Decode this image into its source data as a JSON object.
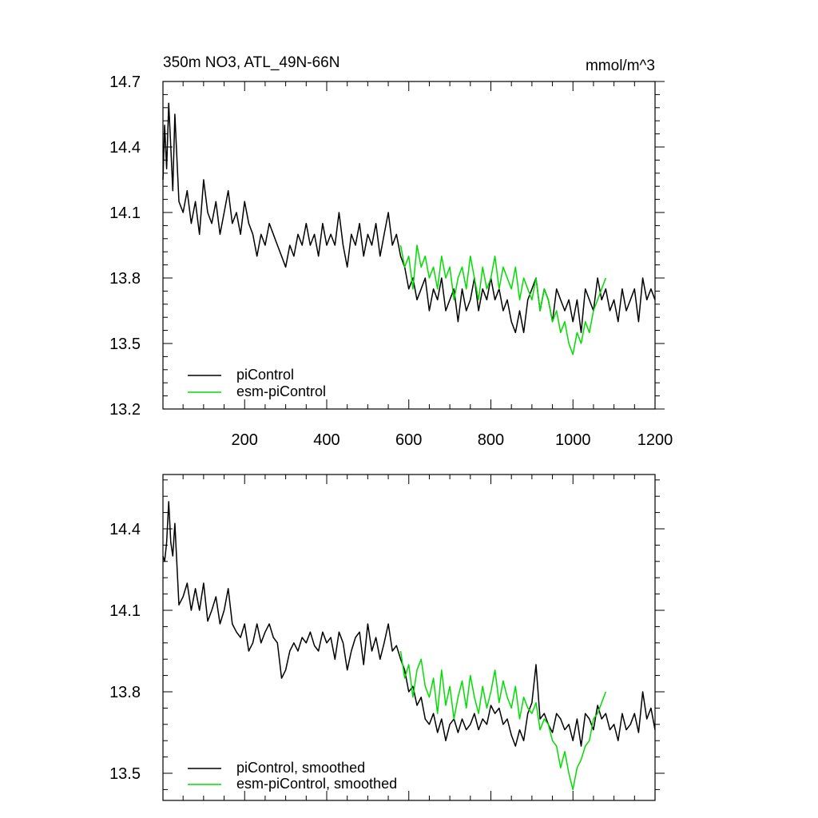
{
  "chart_data": [
    {
      "type": "line",
      "title": "350m NO3, ATL_49N-66N",
      "units": "mmol/m^3",
      "xlabel": "",
      "ylabel": "",
      "xlim": [
        1,
        1200
      ],
      "ylim": [
        13.2,
        14.7
      ],
      "xticks": [
        200,
        400,
        600,
        800,
        1000,
        1200
      ],
      "yticks": [
        13.2,
        13.5,
        13.8,
        14.1,
        14.4,
        14.7
      ],
      "ytick_labels": [
        "13.2",
        "13.5",
        "13.8",
        "14.1",
        "14.4",
        "14.7"
      ],
      "xtick_labels": [
        "200",
        "400",
        "600",
        "800",
        "1000",
        "1200"
      ],
      "grid": false,
      "legend_position": "bottom-left",
      "series": [
        {
          "name": "piControl",
          "color": "#000000",
          "x": [
            1,
            5,
            10,
            15,
            20,
            25,
            30,
            40,
            50,
            60,
            70,
            80,
            90,
            100,
            110,
            120,
            130,
            140,
            150,
            160,
            170,
            180,
            190,
            200,
            210,
            220,
            230,
            240,
            250,
            260,
            270,
            280,
            290,
            300,
            310,
            320,
            330,
            340,
            350,
            360,
            370,
            380,
            390,
            400,
            410,
            420,
            430,
            440,
            450,
            460,
            470,
            480,
            490,
            500,
            510,
            520,
            530,
            540,
            550,
            560,
            570,
            580,
            590,
            600,
            610,
            620,
            630,
            640,
            650,
            660,
            670,
            680,
            690,
            700,
            710,
            720,
            730,
            740,
            750,
            760,
            770,
            780,
            790,
            800,
            810,
            820,
            830,
            840,
            850,
            860,
            870,
            880,
            890,
            900,
            910,
            920,
            930,
            940,
            950,
            960,
            970,
            980,
            990,
            1000,
            1010,
            1020,
            1030,
            1040,
            1050,
            1060,
            1070,
            1080,
            1090,
            1100,
            1110,
            1120,
            1130,
            1140,
            1150,
            1160,
            1170,
            1180,
            1190,
            1200
          ],
          "values": [
            14.25,
            14.5,
            14.3,
            14.6,
            14.4,
            14.2,
            14.55,
            14.15,
            14.1,
            14.2,
            14.05,
            14.15,
            14.0,
            14.25,
            14.1,
            14.05,
            14.15,
            14.0,
            14.1,
            14.2,
            14.05,
            14.1,
            14.0,
            14.15,
            14.05,
            14.0,
            13.9,
            14.0,
            13.95,
            14.05,
            14.0,
            13.95,
            13.9,
            13.85,
            13.95,
            13.9,
            14.0,
            13.95,
            14.05,
            13.95,
            14.0,
            13.9,
            14.05,
            13.95,
            14.0,
            13.95,
            14.1,
            13.95,
            13.85,
            14.0,
            13.95,
            14.05,
            13.9,
            14.0,
            13.95,
            14.05,
            13.9,
            14.0,
            14.1,
            13.95,
            14.0,
            13.9,
            13.85,
            13.75,
            13.8,
            13.7,
            13.75,
            13.8,
            13.65,
            13.75,
            13.7,
            13.8,
            13.65,
            13.7,
            13.75,
            13.6,
            13.75,
            13.65,
            13.7,
            13.8,
            13.65,
            13.75,
            13.7,
            13.8,
            13.7,
            13.75,
            13.65,
            13.7,
            13.6,
            13.55,
            13.65,
            13.55,
            13.7,
            13.75,
            13.8,
            13.65,
            13.75,
            13.7,
            13.6,
            13.75,
            13.7,
            13.65,
            13.7,
            13.6,
            13.7,
            13.55,
            13.75,
            13.7,
            13.65,
            13.8,
            13.7,
            13.75,
            13.65,
            13.7,
            13.6,
            13.75,
            13.65,
            13.7,
            13.75,
            13.6,
            13.8,
            13.7,
            13.75,
            13.7
          ]
        },
        {
          "name": "esm-piControl",
          "color": "#00dd00",
          "x": [
            580,
            590,
            600,
            610,
            620,
            630,
            640,
            650,
            660,
            670,
            680,
            690,
            700,
            710,
            720,
            730,
            740,
            750,
            760,
            770,
            780,
            790,
            800,
            810,
            820,
            830,
            840,
            850,
            860,
            870,
            880,
            890,
            900,
            910,
            920,
            930,
            940,
            950,
            960,
            970,
            980,
            990,
            1000,
            1010,
            1020,
            1030,
            1040,
            1050,
            1060,
            1070,
            1080
          ],
          "values": [
            13.95,
            13.85,
            13.9,
            13.75,
            13.95,
            13.85,
            13.9,
            13.8,
            13.85,
            13.75,
            13.9,
            13.8,
            13.85,
            13.7,
            13.8,
            13.85,
            13.75,
            13.9,
            13.8,
            13.7,
            13.85,
            13.75,
            13.8,
            13.9,
            13.75,
            13.85,
            13.8,
            13.75,
            13.85,
            13.7,
            13.8,
            13.75,
            13.7,
            13.8,
            13.65,
            13.75,
            13.7,
            13.6,
            13.65,
            13.55,
            13.6,
            13.5,
            13.45,
            13.55,
            13.5,
            13.6,
            13.55,
            13.65,
            13.7,
            13.75,
            13.8
          ]
        }
      ]
    },
    {
      "type": "line",
      "title": "",
      "xlabel": "",
      "ylabel": "",
      "xlim": [
        1,
        1200
      ],
      "ylim": [
        13.4,
        14.6
      ],
      "yticks": [
        13.5,
        13.8,
        14.1,
        14.4
      ],
      "ytick_labels": [
        "13.5",
        "13.8",
        "14.1",
        "14.4"
      ],
      "grid": false,
      "legend_position": "bottom-left",
      "series": [
        {
          "name": "piControl, smoothed",
          "color": "#000000",
          "x": [
            1,
            5,
            10,
            15,
            20,
            25,
            30,
            40,
            50,
            60,
            70,
            80,
            90,
            100,
            110,
            120,
            130,
            140,
            150,
            160,
            170,
            180,
            190,
            200,
            210,
            220,
            230,
            240,
            250,
            260,
            270,
            280,
            290,
            300,
            310,
            320,
            330,
            340,
            350,
            360,
            370,
            380,
            390,
            400,
            410,
            420,
            430,
            440,
            450,
            460,
            470,
            480,
            490,
            500,
            510,
            520,
            530,
            540,
            550,
            560,
            570,
            580,
            590,
            600,
            610,
            620,
            630,
            640,
            650,
            660,
            670,
            680,
            690,
            700,
            710,
            720,
            730,
            740,
            750,
            760,
            770,
            780,
            790,
            800,
            810,
            820,
            830,
            840,
            850,
            860,
            870,
            880,
            890,
            900,
            910,
            920,
            930,
            940,
            950,
            960,
            970,
            980,
            990,
            1000,
            1010,
            1020,
            1030,
            1040,
            1050,
            1060,
            1070,
            1080,
            1090,
            1100,
            1110,
            1120,
            1130,
            1140,
            1150,
            1160,
            1170,
            1180,
            1190,
            1200
          ],
          "values": [
            14.3,
            14.28,
            14.35,
            14.5,
            14.35,
            14.3,
            14.42,
            14.12,
            14.15,
            14.2,
            14.1,
            14.18,
            14.1,
            14.2,
            14.06,
            14.1,
            14.15,
            14.05,
            14.1,
            14.18,
            14.05,
            14.02,
            14.0,
            14.05,
            13.95,
            13.98,
            14.05,
            13.98,
            14.02,
            14.05,
            14.0,
            13.98,
            13.85,
            13.88,
            13.95,
            13.98,
            13.95,
            14.0,
            13.98,
            14.02,
            13.97,
            13.95,
            14.02,
            13.98,
            14.0,
            13.92,
            14.02,
            13.98,
            13.88,
            13.95,
            14.0,
            14.02,
            13.9,
            14.05,
            13.95,
            14.0,
            13.92,
            13.98,
            14.05,
            13.95,
            13.97,
            13.92,
            13.88,
            13.8,
            13.82,
            13.75,
            13.78,
            13.7,
            13.68,
            13.72,
            13.65,
            13.7,
            13.62,
            13.68,
            13.7,
            13.65,
            13.7,
            13.66,
            13.68,
            13.72,
            13.66,
            13.7,
            13.68,
            13.75,
            13.72,
            13.74,
            13.68,
            13.7,
            13.64,
            13.6,
            13.66,
            13.62,
            13.72,
            13.76,
            13.9,
            13.7,
            13.72,
            13.68,
            13.65,
            13.72,
            13.7,
            13.66,
            13.68,
            13.62,
            13.7,
            13.6,
            13.72,
            13.7,
            13.66,
            13.75,
            13.7,
            13.72,
            13.66,
            13.68,
            13.62,
            13.72,
            13.66,
            13.68,
            13.72,
            13.65,
            13.8,
            13.7,
            13.74,
            13.66
          ]
        },
        {
          "name": "esm-piControl, smoothed",
          "color": "#00dd00",
          "x": [
            580,
            590,
            600,
            610,
            620,
            630,
            640,
            650,
            660,
            670,
            680,
            690,
            700,
            710,
            720,
            730,
            740,
            750,
            760,
            770,
            780,
            790,
            800,
            810,
            820,
            830,
            840,
            850,
            860,
            870,
            880,
            890,
            900,
            910,
            920,
            930,
            940,
            950,
            960,
            970,
            980,
            990,
            1000,
            1010,
            1020,
            1030,
            1040,
            1050,
            1060,
            1070,
            1080
          ],
          "values": [
            13.95,
            13.85,
            13.9,
            13.78,
            13.88,
            13.92,
            13.82,
            13.78,
            13.85,
            13.72,
            13.88,
            13.75,
            13.82,
            13.7,
            13.78,
            13.84,
            13.74,
            13.86,
            13.78,
            13.72,
            13.82,
            13.74,
            13.8,
            13.88,
            13.76,
            13.84,
            13.78,
            13.74,
            13.82,
            13.7,
            13.78,
            13.74,
            13.72,
            13.76,
            13.66,
            13.7,
            13.68,
            13.62,
            13.6,
            13.52,
            13.58,
            13.5,
            13.44,
            13.52,
            13.55,
            13.6,
            13.62,
            13.7,
            13.72,
            13.76,
            13.8
          ]
        }
      ]
    }
  ]
}
